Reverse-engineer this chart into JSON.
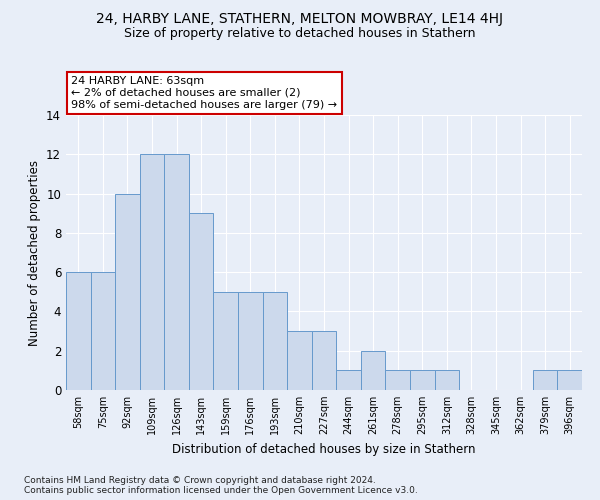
{
  "title1": "24, HARBY LANE, STATHERN, MELTON MOWBRAY, LE14 4HJ",
  "title2": "Size of property relative to detached houses in Stathern",
  "xlabel": "Distribution of detached houses by size in Stathern",
  "ylabel": "Number of detached properties",
  "bin_labels": [
    "58sqm",
    "75sqm",
    "92sqm",
    "109sqm",
    "126sqm",
    "143sqm",
    "159sqm",
    "176sqm",
    "193sqm",
    "210sqm",
    "227sqm",
    "244sqm",
    "261sqm",
    "278sqm",
    "295sqm",
    "312sqm",
    "328sqm",
    "345sqm",
    "362sqm",
    "379sqm",
    "396sqm"
  ],
  "bin_values": [
    6,
    6,
    10,
    12,
    12,
    9,
    5,
    5,
    5,
    3,
    3,
    1,
    2,
    1,
    1,
    1,
    0,
    0,
    0,
    1,
    1
  ],
  "bar_color": "#ccd9ec",
  "bar_edge_color": "#6699cc",
  "annotation_text": "24 HARBY LANE: 63sqm\n← 2% of detached houses are smaller (2)\n98% of semi-detached houses are larger (79) →",
  "annotation_box_color": "#ffffff",
  "annotation_box_edge_color": "#cc0000",
  "ylim": [
    0,
    14
  ],
  "yticks": [
    0,
    2,
    4,
    6,
    8,
    10,
    12,
    14
  ],
  "footnote": "Contains HM Land Registry data © Crown copyright and database right 2024.\nContains public sector information licensed under the Open Government Licence v3.0.",
  "bg_color": "#e8eef8",
  "plot_bg_color": "#e8eef8",
  "title1_fontsize": 10,
  "title2_fontsize": 9,
  "grid_color": "#ffffff",
  "footnote_fontsize": 6.5
}
